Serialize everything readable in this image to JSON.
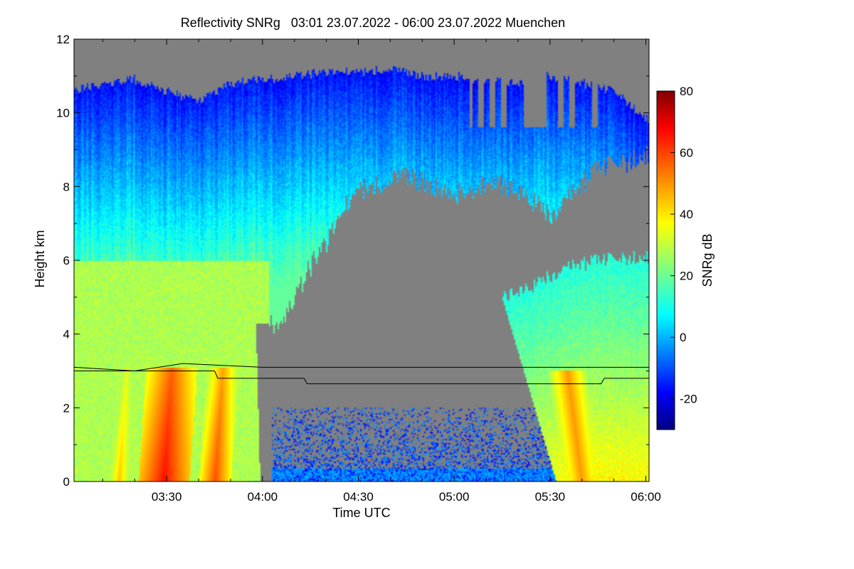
{
  "chart_data": {
    "type": "heatmap",
    "title": "Reflectivity SNRg   03:01 23.07.2022 - 06:00 23.07.2022 Muenchen",
    "xlabel": "Time UTC",
    "ylabel": "Height km",
    "x_range_minutes": [
      181,
      361
    ],
    "x_ticks": [
      {
        "minute": 210,
        "label": "03:30"
      },
      {
        "minute": 240,
        "label": "04:00"
      },
      {
        "minute": 270,
        "label": "04:30"
      },
      {
        "minute": 300,
        "label": "05:00"
      },
      {
        "minute": 330,
        "label": "05:30"
      },
      {
        "minute": 360,
        "label": "06:00"
      }
    ],
    "ylim": [
      0,
      12
    ],
    "y_ticks": [
      0,
      2,
      4,
      6,
      8,
      10,
      12
    ],
    "colorbar": {
      "label": "SNRg dB",
      "range": [
        -30,
        80
      ],
      "ticks": [
        -20,
        0,
        20,
        40,
        60,
        80
      ],
      "colormap": "jet"
    },
    "background_color": "#808080",
    "cloud_top_km": [
      [
        181,
        10.6
      ],
      [
        190,
        10.8
      ],
      [
        200,
        10.9
      ],
      [
        210,
        10.6
      ],
      [
        220,
        10.3
      ],
      [
        230,
        10.8
      ],
      [
        240,
        10.9
      ],
      [
        250,
        11.0
      ],
      [
        260,
        11.1
      ],
      [
        270,
        11.1
      ],
      [
        280,
        11.2
      ],
      [
        290,
        11.0
      ],
      [
        300,
        11.0
      ],
      [
        310,
        10.9
      ],
      [
        320,
        10.8
      ],
      [
        330,
        11.0
      ],
      [
        340,
        10.8
      ],
      [
        350,
        10.6
      ],
      [
        361,
        9.8
      ]
    ],
    "upper_cloud_base_km": [
      [
        242,
        4.2
      ],
      [
        248,
        4.6
      ],
      [
        255,
        5.8
      ],
      [
        260,
        6.5
      ],
      [
        265,
        7.3
      ],
      [
        270,
        7.9
      ],
      [
        285,
        8.3
      ],
      [
        300,
        7.8
      ],
      [
        310,
        8.1
      ],
      [
        320,
        7.9
      ],
      [
        330,
        7.2
      ],
      [
        345,
        8.5
      ],
      [
        355,
        8.7
      ],
      [
        361,
        8.9
      ]
    ],
    "lower_cloud": {
      "start_minute": 315,
      "end_minute": 361,
      "top_km": [
        [
          315,
          5.0
        ],
        [
          325,
          5.3
        ],
        [
          335,
          5.8
        ],
        [
          345,
          6.0
        ],
        [
          361,
          6.1
        ]
      ]
    },
    "high_snr_columns": [
      {
        "center_minute": 210,
        "width_min": 8,
        "peak_db": 65
      },
      {
        "center_minute": 226,
        "width_min": 5,
        "peak_db": 58
      },
      {
        "center_minute": 196,
        "width_min": 4,
        "peak_db": 45
      },
      {
        "center_minute": 340,
        "width_min": 6,
        "peak_db": 50
      }
    ],
    "reference_lines_km": [
      {
        "name": "line_a",
        "points": [
          [
            181,
            3.1
          ],
          [
            200,
            3.0
          ],
          [
            215,
            3.2
          ],
          [
            240,
            3.1
          ],
          [
            361,
            3.1
          ]
        ]
      },
      {
        "name": "line_b",
        "points": [
          [
            181,
            3.0
          ],
          [
            225,
            3.0
          ],
          [
            226,
            2.8
          ],
          [
            253,
            2.8
          ],
          [
            254,
            2.65
          ],
          [
            346,
            2.65
          ],
          [
            347,
            2.8
          ],
          [
            361,
            2.8
          ]
        ]
      }
    ]
  }
}
